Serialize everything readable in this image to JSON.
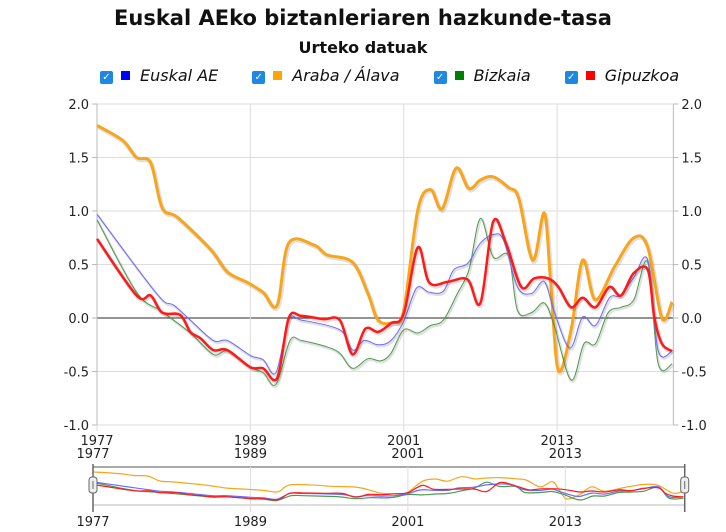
{
  "chart_data": {
    "type": "line",
    "title": "Euskal AEko biztanleriaren hazkunde-tasa",
    "subtitle": "Urteko datuak",
    "ylim": [
      -1.0,
      2.0
    ],
    "xlim": [
      1977,
      2022
    ],
    "yticks": [
      "2.0",
      "1.5",
      "1.0",
      "0.5",
      "0.0",
      "-0.5",
      "-1.0"
    ],
    "ytick_values": [
      2.0,
      1.5,
      1.0,
      0.5,
      0.0,
      -0.5,
      -1.0
    ],
    "xticks": [
      "1977",
      "1989",
      "2001",
      "2013"
    ],
    "xtick_values": [
      1977,
      1989,
      2001,
      2013
    ],
    "grid": true,
    "legend_position": "top",
    "series": [
      {
        "name": "Euskal AE",
        "color": "#0000ff",
        "checked": true,
        "x": [
          1977,
          1980.1,
          1982.1,
          1983,
          1984.3,
          1986.1,
          1987.2,
          1989,
          1990,
          1991,
          1992,
          1993,
          1996,
          1997,
          1997.9,
          1999,
          2000,
          2001,
          2002,
          2003,
          2004.1,
          2004.9,
          2006,
          2007,
          2008,
          2008.8,
          2009.9,
          2011,
          2012,
          2012.8,
          2014,
          2015,
          2016,
          2017.1,
          2018,
          2019,
          2020.1,
          2020.9,
          2022
        ],
        "y": [
          0.97,
          0.47,
          0.17,
          0.12,
          -0.02,
          -0.21,
          -0.21,
          -0.35,
          -0.39,
          -0.51,
          -0.02,
          -0.02,
          -0.11,
          -0.3,
          -0.21,
          -0.25,
          -0.21,
          -0.03,
          0.28,
          0.24,
          0.25,
          0.45,
          0.51,
          0.7,
          0.78,
          0.73,
          0.29,
          0.23,
          0.34,
          0.05,
          -0.28,
          0.01,
          -0.07,
          0.19,
          0.21,
          0.38,
          0.54,
          -0.3,
          -0.31
        ]
      },
      {
        "name": "Araba / Álava",
        "color": "#ffa500",
        "checked": true,
        "x": [
          1977,
          1979,
          1980.1,
          1981.2,
          1982.1,
          1983.3,
          1985.9,
          1987.2,
          1988.8,
          1990,
          1991.1,
          1992,
          1994,
          1995,
          1997,
          1998.2,
          1999,
          2000.2,
          2001,
          2002.1,
          2003.1,
          2004,
          2005.1,
          2006.1,
          2007,
          2008,
          2009.2,
          2010,
          2011.1,
          2012,
          2012.5,
          2013.1,
          2014.1,
          2015,
          2016,
          2017.5,
          2019,
          2020.1,
          2021.2,
          2022
        ],
        "y": [
          1.8,
          1.66,
          1.5,
          1.45,
          1.03,
          0.94,
          0.64,
          0.43,
          0.33,
          0.24,
          0.12,
          0.7,
          0.68,
          0.59,
          0.52,
          0.23,
          -0.02,
          -0.04,
          0.07,
          1.01,
          1.2,
          1.02,
          1.4,
          1.21,
          1.29,
          1.32,
          1.22,
          1.12,
          0.54,
          0.98,
          0.33,
          -0.49,
          -0.11,
          0.54,
          0.17,
          0.48,
          0.75,
          0.66,
          0.0,
          0.15
        ]
      },
      {
        "name": "Bizkaia",
        "color": "#008000",
        "checked": true,
        "x": [
          1977,
          1980.1,
          1982.1,
          1984.3,
          1986.1,
          1987.2,
          1989,
          1990,
          1991,
          1992.1,
          1993,
          1995,
          1996,
          1997,
          1998.2,
          1999.2,
          2000,
          2001,
          2002.1,
          2003.1,
          2004.1,
          2005.2,
          2006.1,
          2007,
          2008,
          2009.2,
          2009.9,
          2011,
          2012,
          2012.8,
          2014.1,
          2015.1,
          2016,
          2017,
          2018,
          2019,
          2020.1,
          2020.9,
          2022
        ],
        "y": [
          0.92,
          0.24,
          0.06,
          -0.14,
          -0.34,
          -0.31,
          -0.46,
          -0.51,
          -0.62,
          -0.21,
          -0.21,
          -0.27,
          -0.33,
          -0.47,
          -0.38,
          -0.4,
          -0.33,
          -0.11,
          -0.14,
          -0.07,
          -0.02,
          0.23,
          0.45,
          0.93,
          0.57,
          0.58,
          0.07,
          0.05,
          0.14,
          -0.08,
          -0.58,
          -0.24,
          -0.24,
          0.05,
          0.1,
          0.17,
          0.52,
          -0.42,
          -0.43
        ]
      },
      {
        "name": "Gipuzkoa",
        "color": "#ff0000",
        "checked": true,
        "x": [
          1977,
          1980.1,
          1981.2,
          1982.1,
          1983.5,
          1984.3,
          1985.1,
          1986.1,
          1987.2,
          1989,
          1990,
          1991.1,
          1992,
          1993,
          1994.7,
          1996,
          1997,
          1998,
          1999,
          2000,
          2001,
          2002.1,
          2003,
          2004.5,
          2006,
          2007,
          2008,
          2009,
          2010.2,
          2011.2,
          2012.3,
          2013.1,
          2014.1,
          2015,
          2016,
          2017.1,
          2018,
          2019,
          2020.1,
          2020.6,
          2021.2,
          2022
        ],
        "y": [
          0.74,
          0.21,
          0.21,
          0.05,
          0.03,
          -0.13,
          -0.19,
          -0.3,
          -0.3,
          -0.46,
          -0.47,
          -0.56,
          0.0,
          0.02,
          -0.01,
          -0.02,
          -0.34,
          -0.1,
          -0.13,
          -0.05,
          0.04,
          0.66,
          0.33,
          0.34,
          0.36,
          0.14,
          0.9,
          0.7,
          0.29,
          0.37,
          0.37,
          0.29,
          0.1,
          0.19,
          0.1,
          0.29,
          0.21,
          0.42,
          0.45,
          0.01,
          -0.24,
          -0.31
        ]
      }
    ]
  }
}
